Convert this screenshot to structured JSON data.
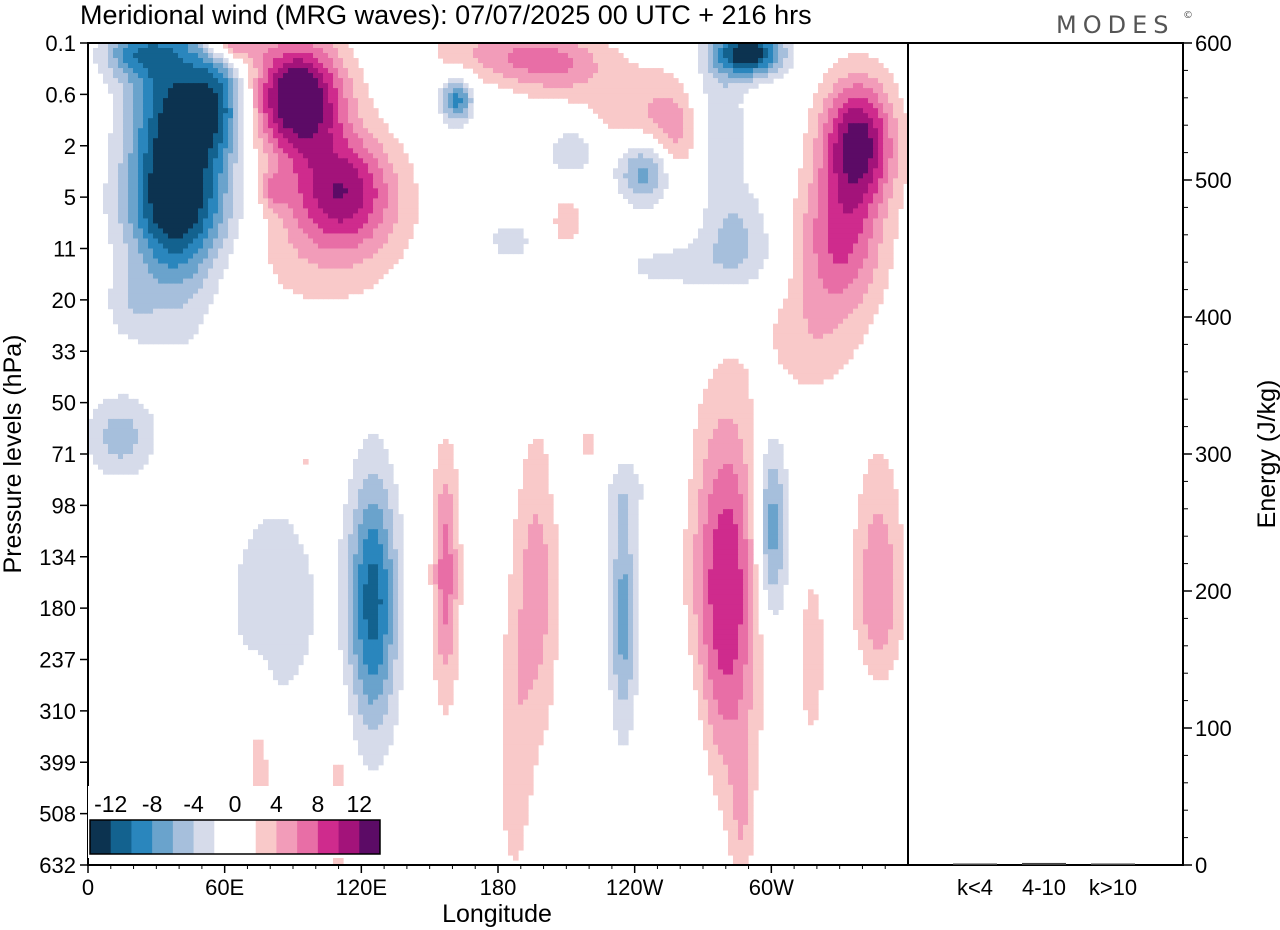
{
  "chart_data": [
    {
      "type": "heatmap",
      "title": "Meridional wind (MRG waves):  07/07/2025  00 UTC  + 216 hrs",
      "xlabel": "Longitude",
      "ylabel": "Pressure levels (hPa)",
      "x_ticks": [
        "0",
        "60E",
        "120E",
        "180",
        "120W",
        "60W"
      ],
      "y_ticks": [
        "0.1",
        "0.6",
        "2",
        "5",
        "11",
        "20",
        "33",
        "50",
        "71",
        "98",
        "134",
        "180",
        "237",
        "310",
        "399",
        "508",
        "632"
      ],
      "colorbar": {
        "labels": [
          "-12",
          "-8",
          "-4",
          "0",
          "4",
          "8",
          "12"
        ],
        "colors": [
          "#0c3350",
          "#13628f",
          "#2a86bd",
          "#6aa3cc",
          "#a6bfdc",
          "#d6dbea",
          "#ffffff",
          "#ffffff",
          "#f9c9c9",
          "#f29cb9",
          "#e86ea6",
          "#cf2b8d",
          "#a3137a",
          "#5c0b66"
        ]
      },
      "blobs": [
        {
          "lon": 38,
          "lev": 2.4,
          "w": 40,
          "h": 5.4,
          "v": -14
        },
        {
          "lon": 58,
          "lev": 0.9,
          "w": 26,
          "h": 2.2,
          "v": -8
        },
        {
          "lon": 20,
          "lev": 0.2,
          "w": 30,
          "h": 1.0,
          "v": -6
        },
        {
          "lon": 45,
          "lev": 6.5,
          "w": 60,
          "h": 2.0,
          "v": -4
        },
        {
          "lon": 18,
          "lev": 21.5,
          "w": 22,
          "h": 1.4,
          "v": -2.5
        },
        {
          "lon": 92,
          "lev": 0.65,
          "w": 40,
          "h": 2.2,
          "v": 15
        },
        {
          "lon": 112,
          "lev": 4.6,
          "w": 44,
          "h": 2.2,
          "v": 9
        },
        {
          "lon": 63,
          "lev": 0.1,
          "w": 24,
          "h": 0.7,
          "v": 8
        },
        {
          "lon": 102,
          "lev": 8.5,
          "w": 80,
          "h": 3.5,
          "v": 3.5
        },
        {
          "lon": 82,
          "lev": 4.6,
          "w": 14,
          "h": 0.7,
          "v": 4
        },
        {
          "lon": 162,
          "lev": 0.75,
          "w": 14,
          "h": 0.9,
          "v": -9
        },
        {
          "lon": 178,
          "lev": 0.2,
          "w": 60,
          "h": 1.1,
          "v": 4
        },
        {
          "lon": 204,
          "lev": 0.3,
          "w": 45,
          "h": 1.2,
          "v": 5
        },
        {
          "lon": 214,
          "lev": 2.2,
          "w": 30,
          "h": 1.4,
          "v": -5
        },
        {
          "lon": 245,
          "lev": 3.4,
          "w": 28,
          "h": 1.4,
          "v": -10
        },
        {
          "lon": 236,
          "lev": 1.6,
          "w": 60,
          "h": 2.6,
          "v": 4
        },
        {
          "lon": 258,
          "lev": 1.9,
          "w": 26,
          "h": 2.2,
          "v": 4.5
        },
        {
          "lon": 290,
          "lev": 0.2,
          "w": 30,
          "h": 0.9,
          "v": -14
        },
        {
          "lon": 276,
          "lev": 1.5,
          "w": 24,
          "h": 2.8,
          "v": -5
        },
        {
          "lon": 338,
          "lev": 1.9,
          "w": 32,
          "h": 2.5,
          "v": 13
        },
        {
          "lon": 330,
          "lev": 10.5,
          "w": 38,
          "h": 2.8,
          "v": 8
        },
        {
          "lon": 316,
          "lev": 31,
          "w": 42,
          "h": 2.4,
          "v": 3
        },
        {
          "lon": 285,
          "lev": 9.5,
          "w": 32,
          "h": 2.0,
          "v": -4
        },
        {
          "lon": 258,
          "lev": 14,
          "w": 80,
          "h": 1.2,
          "v": -2.5
        },
        {
          "lon": 185,
          "lev": 10,
          "w": 30,
          "h": 1.2,
          "v": -2.5
        },
        {
          "lon": 210,
          "lev": 8,
          "w": 14,
          "h": 1.0,
          "v": 3.5
        },
        {
          "lon": 14,
          "lev": 64,
          "w": 30,
          "h": 1.6,
          "v": -5
        },
        {
          "lon": 125,
          "lev": 175,
          "w": 22,
          "h": 5.0,
          "v": -11
        },
        {
          "lon": 82,
          "lev": 175,
          "w": 40,
          "h": 4.0,
          "v": -4
        },
        {
          "lon": 157,
          "lev": 150,
          "w": 12,
          "h": 4.8,
          "v": 7
        },
        {
          "lon": 197,
          "lev": 160,
          "w": 20,
          "h": 6.0,
          "v": 5
        },
        {
          "lon": 235,
          "lev": 190,
          "w": 12,
          "h": 4.5,
          "v": -7
        },
        {
          "lon": 280,
          "lev": 165,
          "w": 30,
          "h": 7.0,
          "v": 10
        },
        {
          "lon": 300,
          "lev": 115,
          "w": 14,
          "h": 3.6,
          "v": -8
        },
        {
          "lon": 347,
          "lev": 175,
          "w": 22,
          "h": 5.5,
          "v": 6
        },
        {
          "lon": 318,
          "lev": 235,
          "w": 12,
          "h": 3.5,
          "v": 3.5
        },
        {
          "lon": 232,
          "lev": 90,
          "w": 50,
          "h": 1.3,
          "v": -2
        },
        {
          "lon": 187,
          "lev": 390,
          "w": 16,
          "h": 6.0,
          "v": 3
        },
        {
          "lon": 263,
          "lev": 420,
          "w": 20,
          "h": 5.0,
          "v": -2.5
        },
        {
          "lon": 75,
          "lev": 420,
          "w": 12,
          "h": 4.0,
          "v": 3
        },
        {
          "lon": 110,
          "lev": 500,
          "w": 10,
          "h": 4.0,
          "v": 3
        },
        {
          "lon": 287,
          "lev": 520,
          "w": 10,
          "h": 3.0,
          "v": 3
        },
        {
          "lon": 345,
          "lev": 280,
          "w": 30,
          "h": 2.0,
          "v": -2.5
        },
        {
          "lon": 220,
          "lev": 70,
          "w": 20,
          "h": 1.6,
          "v": 2.5
        },
        {
          "lon": 95,
          "lev": 78,
          "w": 6,
          "h": 1.8,
          "v": 2.5
        }
      ]
    },
    {
      "type": "bar",
      "ylabel": "Energy (J/kg)",
      "categories": [
        "k<4",
        "4-10",
        "k>10"
      ],
      "values": [
        0.5,
        1.5,
        0.3
      ],
      "ylim": [
        0,
        600
      ],
      "y_ticks": [
        "0",
        "100",
        "200",
        "300",
        "400",
        "500",
        "600"
      ]
    }
  ],
  "logo": "MODES",
  "logo_mark": "©"
}
